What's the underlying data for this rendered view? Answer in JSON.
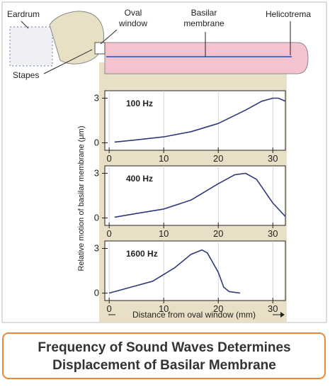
{
  "diagram": {
    "labels": {
      "eardrum": "Eardrum",
      "oval_window": [
        "Oval",
        "window"
      ],
      "basilar_membrane": [
        "Basilar",
        "membrane"
      ],
      "helicotrema": "Helicotrema",
      "stapes": "Stapes"
    }
  },
  "axis_labels": {
    "ylabel": "Relative motion of basilar membrane (μm)",
    "xlabel": "Distance from oval window (mm)"
  },
  "chart_data": [
    {
      "type": "line",
      "title": "100 Hz",
      "color": "#2e3a7a",
      "x": [
        1,
        5,
        10,
        15,
        20,
        25,
        28,
        30,
        31,
        32.3
      ],
      "values": [
        0.05,
        0.2,
        0.4,
        0.75,
        1.3,
        2.2,
        2.8,
        3.0,
        3.0,
        2.8
      ],
      "xlim": [
        -0.8,
        32.3
      ],
      "ylim": [
        -0.5,
        3.5
      ],
      "xticks": [
        0,
        10,
        20,
        30
      ],
      "yticks": [
        0,
        3
      ],
      "grid": true
    },
    {
      "type": "line",
      "title": "400 Hz",
      "color": "#2e3a7a",
      "x": [
        1,
        5,
        10,
        15,
        20,
        23,
        25,
        27,
        30,
        32.3
      ],
      "values": [
        0.05,
        0.3,
        0.6,
        1.2,
        2.3,
        2.9,
        3.0,
        2.6,
        1.0,
        0.1
      ],
      "xlim": [
        -0.8,
        32.3
      ],
      "ylim": [
        -0.5,
        3.5
      ],
      "xticks": [
        0,
        10,
        20,
        30
      ],
      "yticks": [
        0,
        3
      ],
      "grid": true
    },
    {
      "type": "line",
      "title": "1600 Hz",
      "color": "#2e3a7a",
      "x": [
        0,
        4,
        8,
        12,
        15,
        17,
        18,
        20,
        21,
        22,
        24
      ],
      "values": [
        0,
        0.4,
        0.8,
        1.7,
        2.6,
        2.9,
        2.7,
        1.4,
        0.4,
        0.1,
        0
      ],
      "xlim": [
        -0.8,
        32.3
      ],
      "ylim": [
        -0.5,
        3.5
      ],
      "xticks": [
        0,
        10,
        20,
        30
      ],
      "yticks": [
        0,
        3
      ],
      "grid": true
    }
  ],
  "caption": [
    "Frequency of Sound Waves Determines",
    "Displacement of Basilar Membrane"
  ]
}
